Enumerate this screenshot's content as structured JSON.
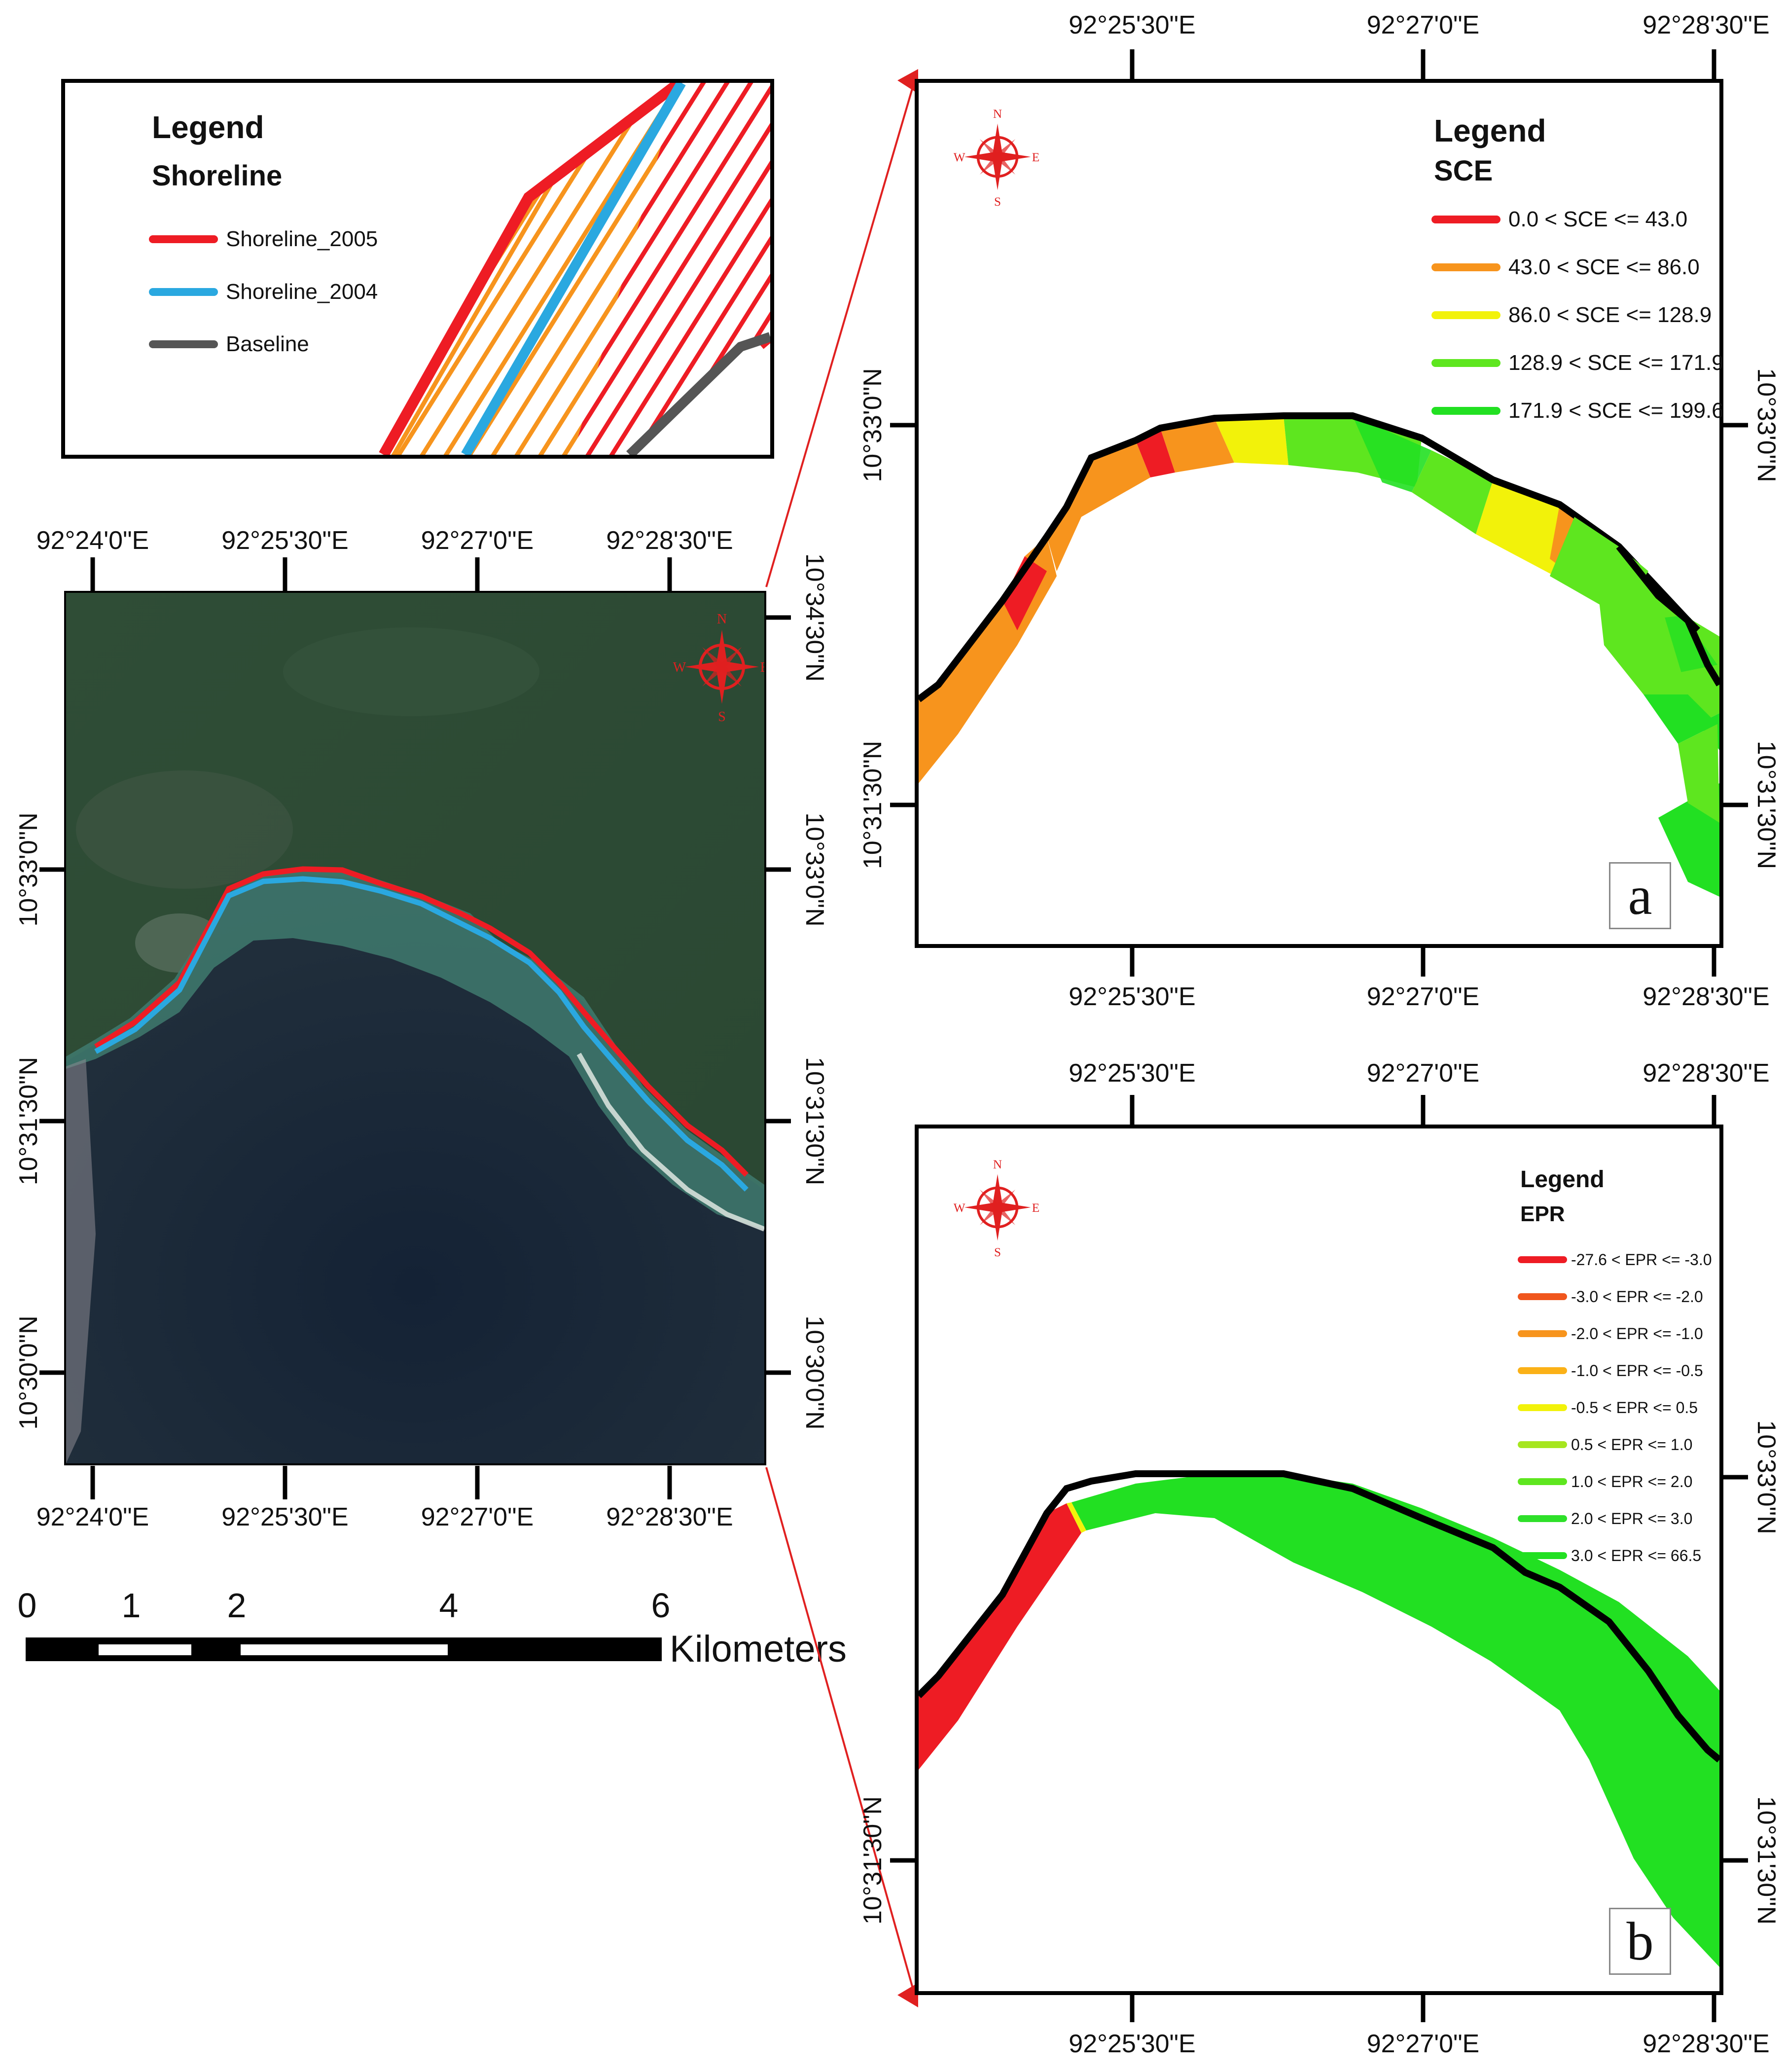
{
  "legend_inset": {
    "title": "Legend",
    "subtitle": "Shoreline",
    "items": [
      {
        "label": "Shoreline_2005",
        "color": "#ee1c24"
      },
      {
        "label": "Shoreline_2004",
        "color": "#2aa8e0"
      },
      {
        "label": "Baseline",
        "color": "#555555"
      }
    ]
  },
  "main_map": {
    "top_lon": [
      "92°24'0\"E",
      "92°25'30\"E",
      "92°27'0\"E",
      "92°28'30\"E"
    ],
    "bottom_lon": [
      "92°24'0\"E",
      "92°25'30\"E",
      "92°27'0\"E",
      "92°28'30\"E"
    ],
    "left_lat": [
      "10°33'0\"N",
      "10°31'30\"N",
      "10°30'0\"N"
    ],
    "right_lat": [
      "10°34'30\"N",
      "10°33'0\"N",
      "10°31'30\"N",
      "10°30'0\"N"
    ],
    "compass": {
      "n": "N",
      "s": "S",
      "e": "E",
      "w": "W"
    },
    "colors": {
      "land": "#2b4a33",
      "sea": "#1c2a3a",
      "shoreline_2005": "#ee1c24",
      "shoreline_2004": "#2aa8e0"
    }
  },
  "scale_bar": {
    "ticks": [
      "0",
      "1",
      "2",
      "4",
      "6"
    ],
    "unit": "Kilometers"
  },
  "panel_a": {
    "letter": "a",
    "top_lon": [
      "92°25'30\"E",
      "92°27'0\"E",
      "92°28'30\"E"
    ],
    "bottom_lon": [
      "92°25'30\"E",
      "92°27'0\"E",
      "92°28'30\"E"
    ],
    "left_lat": [
      "10°33'0\"N",
      "10°31'30\"N"
    ],
    "right_lat": [
      "10°33'0\"N",
      "10°31'30\"N"
    ],
    "compass": {
      "n": "N",
      "s": "S",
      "e": "E",
      "w": "W"
    },
    "legend_title": "Legend",
    "legend_sub": "SCE",
    "legend": [
      {
        "label": "0.0 < SCE <= 43.0",
        "color": "#ee1c24"
      },
      {
        "label": "43.0 < SCE <= 86.0",
        "color": "#f7941d"
      },
      {
        "label": "86.0 < SCE <= 128.9",
        "color": "#f2f20a"
      },
      {
        "label": "128.9 < SCE <= 171.9",
        "color": "#5ee61f"
      },
      {
        "label": "171.9 < SCE <= 199.6",
        "color": "#22e022"
      }
    ]
  },
  "panel_b": {
    "letter": "b",
    "top_lon": [
      "92°25'30\"E",
      "92°27'0\"E",
      "92°28'30\"E"
    ],
    "bottom_lon": [
      "92°25'30\"E",
      "92°27'0\"E",
      "92°28'30\"E"
    ],
    "left_lat": [
      "10°31'30\"N"
    ],
    "right_lat": [
      "10°33'0\"N",
      "10°31'30\"N"
    ],
    "compass": {
      "n": "N",
      "s": "S",
      "e": "E",
      "w": "W"
    },
    "legend_title": "Legend",
    "legend_sub": "EPR",
    "legend": [
      {
        "label": "-27.6 < EPR <= -3.0",
        "color": "#ee1c24"
      },
      {
        "label": "-3.0 < EPR <= -2.0",
        "color": "#f0561d"
      },
      {
        "label": "-2.0 < EPR <= -1.0",
        "color": "#f7941d"
      },
      {
        "label": "-1.0 < EPR <= -0.5",
        "color": "#fbb117"
      },
      {
        "label": "-0.5 < EPR <= 0.5",
        "color": "#f2f20a"
      },
      {
        "label": "0.5 < EPR <= 1.0",
        "color": "#a6e61f"
      },
      {
        "label": "1.0 < EPR <= 2.0",
        "color": "#5ee61f"
      },
      {
        "label": "2.0 < EPR <= 3.0",
        "color": "#2ee02a"
      },
      {
        "label": "3.0 < EPR <= 66.5",
        "color": "#22e022"
      }
    ]
  }
}
